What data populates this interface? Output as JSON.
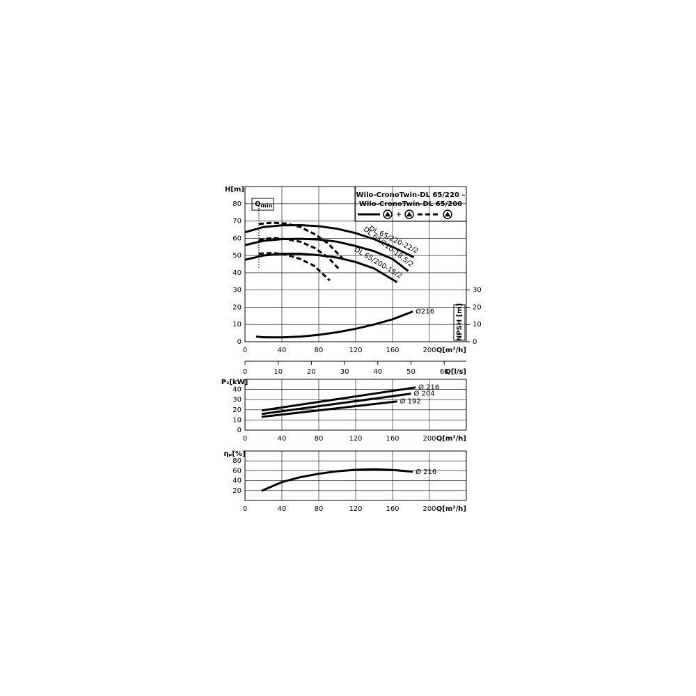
{
  "chart_data": [
    {
      "type": "line",
      "title_lines": [
        "Wilo-CronoTwin-DL 65/220 –",
        "Wilo-CronoTwin-DL 65/200"
      ],
      "xlabel": "Q[m³/h]",
      "ylabel": "H[m]",
      "y2label": "NPSH [m]",
      "x2label": "Q[l/s]",
      "xlim": [
        0,
        240
      ],
      "xticks": [
        0,
        40,
        80,
        120,
        160,
        200
      ],
      "ylim": [
        0,
        90
      ],
      "yticks": [
        0,
        10,
        20,
        30,
        40,
        50,
        60,
        70,
        80
      ],
      "y2lim": [
        0,
        90
      ],
      "y2ticks": [
        0,
        10,
        20,
        30
      ],
      "x2lim": [
        0,
        66.67
      ],
      "x2ticks": [
        0,
        10,
        20,
        30,
        40,
        50,
        60
      ],
      "grid": true,
      "legend": [
        {
          "style": "solid",
          "icons": 2,
          "joiner": "+"
        },
        {
          "style": "dashed",
          "icons": 1
        }
      ],
      "qmin": {
        "label": "Q",
        "sub": "min",
        "x": 15,
        "y_range": [
          43,
          78
        ]
      },
      "series": [
        {
          "name": "DL 65/220-22/2",
          "style": "solid",
          "color": "#000",
          "x": [
            0,
            20,
            40,
            60,
            80,
            100,
            120,
            140,
            160,
            183
          ],
          "values": [
            63.5,
            66.5,
            67.5,
            67.6,
            67,
            65.5,
            63,
            59.5,
            55,
            49
          ]
        },
        {
          "style": "dashed",
          "color": "#000",
          "x": [
            15,
            30,
            45,
            60,
            75,
            90,
            108
          ],
          "values": [
            68.3,
            69,
            68.5,
            66.5,
            62.5,
            57,
            47
          ]
        },
        {
          "name": "DL 65/210-18,5/2",
          "style": "solid",
          "color": "#000",
          "x": [
            0,
            20,
            40,
            60,
            80,
            100,
            120,
            140,
            160,
            177
          ],
          "values": [
            56,
            58.5,
            59.5,
            59.7,
            59.3,
            58,
            55.5,
            52.5,
            48,
            41
          ]
        },
        {
          "style": "dashed",
          "color": "#000",
          "x": [
            15,
            30,
            45,
            60,
            75,
            90,
            102
          ],
          "values": [
            59,
            60.2,
            59.5,
            58,
            54.5,
            49,
            42
          ]
        },
        {
          "name": "DL 65/200-15/2",
          "style": "solid",
          "color": "#000",
          "x": [
            0,
            20,
            40,
            60,
            80,
            100,
            120,
            140,
            165
          ],
          "values": [
            47.5,
            50,
            51,
            51,
            50.2,
            48.8,
            46.2,
            42.5,
            34.5
          ]
        },
        {
          "style": "dashed",
          "color": "#000",
          "x": [
            15,
            30,
            45,
            60,
            75,
            92
          ],
          "values": [
            51,
            51.5,
            50.5,
            48,
            44,
            35.5
          ]
        },
        {
          "name": "Ø216",
          "style": "solid",
          "color": "#000",
          "axis": "y2",
          "x": [
            12,
            20,
            40,
            60,
            80,
            100,
            120,
            140,
            160,
            182
          ],
          "values": [
            3,
            2.6,
            2.5,
            3,
            4,
            5.5,
            7.5,
            10,
            13,
            17.5
          ]
        }
      ]
    },
    {
      "type": "line",
      "xlabel": "Q[m³/h]",
      "ylabel": "P₂[kW]",
      "xlim": [
        0,
        240
      ],
      "xticks": [
        0,
        40,
        80,
        120,
        160,
        200
      ],
      "ylim": [
        0,
        50
      ],
      "yticks": [
        0,
        10,
        20,
        30,
        40
      ],
      "grid": true,
      "series": [
        {
          "name": "Ø 216",
          "style": "solid",
          "color": "#000",
          "x": [
            18,
            100,
            185
          ],
          "values": [
            19.3,
            30.5,
            42
          ]
        },
        {
          "name": "Ø 204",
          "style": "solid",
          "color": "#000",
          "x": [
            18,
            100,
            180
          ],
          "values": [
            15.9,
            26,
            35.9
          ]
        },
        {
          "name": "Ø 192",
          "style": "solid",
          "color": "#000",
          "x": [
            18,
            90,
            165
          ],
          "values": [
            13.1,
            20.5,
            28.3
          ]
        }
      ]
    },
    {
      "type": "line",
      "xlabel": "Q[m³/h]",
      "ylabel": "ηₚ[%]",
      "xlim": [
        0,
        240
      ],
      "xticks": [
        0,
        40,
        80,
        120,
        160,
        200
      ],
      "ylim": [
        0,
        100
      ],
      "yticks": [
        20,
        40,
        60,
        80
      ],
      "grid": true,
      "series": [
        {
          "name": "Ø 216",
          "style": "solid",
          "color": "#000",
          "x": [
            18,
            40,
            60,
            80,
            100,
            120,
            140,
            160,
            182
          ],
          "values": [
            19.4,
            37,
            47,
            54,
            59,
            62,
            63,
            61.5,
            58
          ]
        }
      ]
    }
  ]
}
